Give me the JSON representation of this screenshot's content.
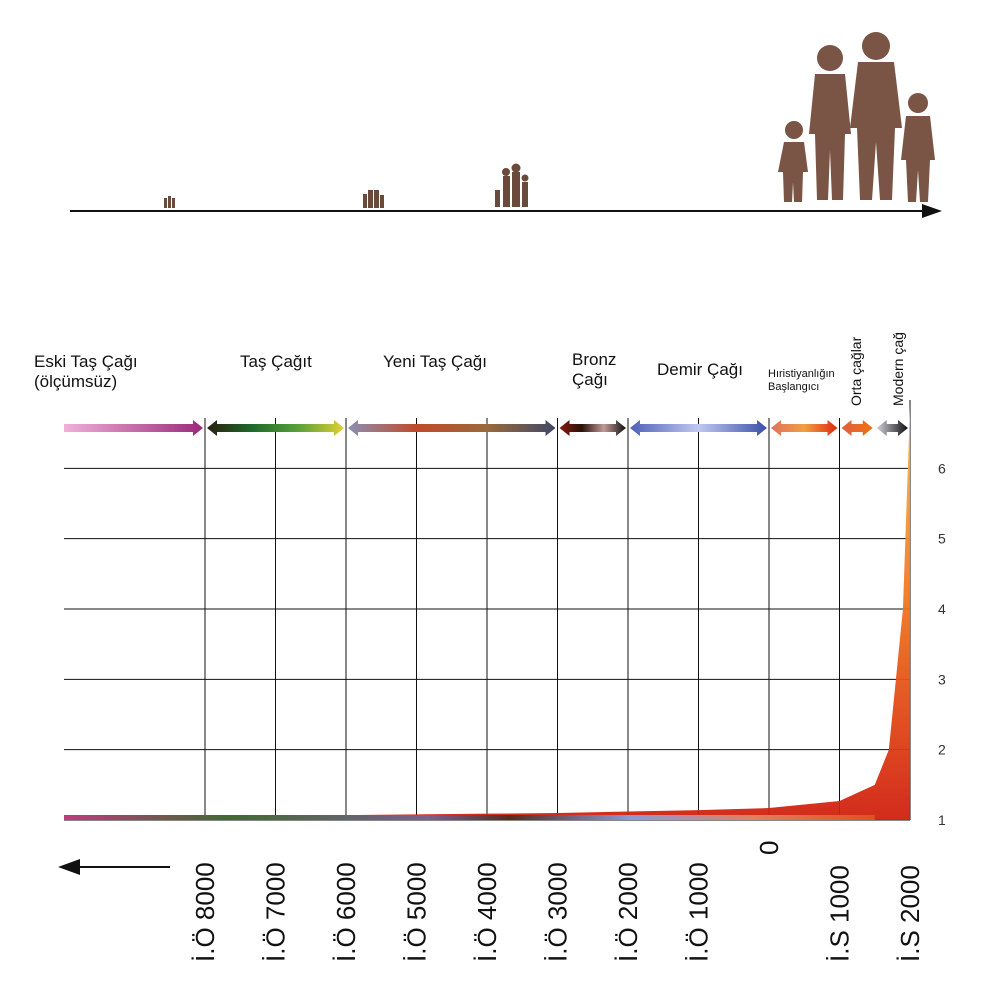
{
  "chart_data": {
    "type": "area",
    "x_ticks": [
      "İ.Ö 8000",
      "İ.Ö 7000",
      "İ.Ö 6000",
      "İ.Ö 5000",
      "İ.Ö 4000",
      "İ.Ö 3000",
      "İ.Ö 2000",
      "İ.Ö 1000",
      "0",
      "İ.S 1000",
      "İ.S 2000"
    ],
    "x_tick_years": [
      -8000,
      -7000,
      -6000,
      -5000,
      -4000,
      -3000,
      -2000,
      -1000,
      0,
      1000,
      2000
    ],
    "y_ticks": [
      "1",
      "2",
      "3",
      "4",
      "5",
      "6"
    ],
    "ylim": [
      0.9,
      6.8
    ],
    "xlim": [
      -10000,
      2000
    ],
    "grid": true,
    "series": [
      {
        "x": [
          -10000,
          -8000,
          -7000,
          -6000,
          -5000,
          -4000,
          -3000,
          -2000,
          -1000,
          0,
          500,
          1000,
          1500,
          1700,
          1900,
          2000
        ],
        "values": [
          1.0,
          1.05,
          1.06,
          1.07,
          1.08,
          1.09,
          1.1,
          1.12,
          1.14,
          1.17,
          1.22,
          1.27,
          1.5,
          2.0,
          4.0,
          6.9
        ]
      }
    ],
    "eras": [
      {
        "name": "Eski Taş Çağı",
        "name2": "(ölçümsüz)",
        "start": -10000,
        "end": -8000,
        "colors": [
          "#f0b0d8",
          "#9a2a7a"
        ]
      },
      {
        "name": "Taş Çağıt",
        "start": -8000,
        "end": -6000,
        "colors": [
          "#2b1f10",
          "#1e6a2a",
          "#5aa03a",
          "#e0d030"
        ]
      },
      {
        "name": "Yeni Taş Çağı",
        "start": -6000,
        "end": -3000,
        "colors": [
          "#8a90b0",
          "#c04a2a",
          "#9a6a3a",
          "#404868"
        ]
      },
      {
        "name": "Bronz",
        "name2": "Çağı",
        "start": -3000,
        "end": -2000,
        "colors": [
          "#8a1a10",
          "#2a1008",
          "#c09a98",
          "#101010"
        ]
      },
      {
        "name": "Demir Çağı",
        "start": -2000,
        "end": 0,
        "colors": [
          "#5060b8",
          "#c0c8f0",
          "#3a50a8"
        ]
      },
      {
        "name": "Hıristiyanlığın",
        "name2": "Başlangıcı",
        "start": 0,
        "end": 1000,
        "colors": [
          "#e07060",
          "#f0a040",
          "#e02810"
        ]
      },
      {
        "name": "Orta çağlar",
        "start": 1000,
        "end": 1500,
        "colors": [
          "#e06040",
          "#f07010"
        ]
      },
      {
        "name": "Modern çağ",
        "start": 1500,
        "end": 2000,
        "colors": [
          "#d0d0d8",
          "#101010"
        ]
      }
    ]
  }
}
